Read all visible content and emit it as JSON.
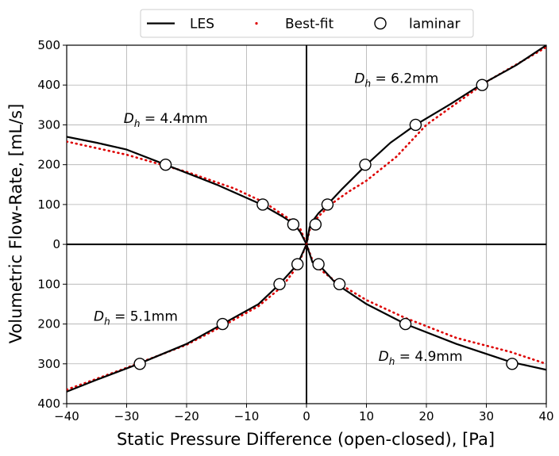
{
  "chart_data": {
    "type": "line",
    "title": "",
    "xlabel": "Static Pressure Difference (open-closed), [Pa]",
    "ylabel": "Volumetric Flow-Rate, [mL/s]",
    "xlim": [
      -40,
      40
    ],
    "ylim": [
      -400,
      500
    ],
    "x_ticks": [
      -40,
      -30,
      -20,
      -10,
      0,
      10,
      20,
      30,
      40
    ],
    "x_tick_labels": [
      "−40",
      "−30",
      "−20",
      "−10",
      "0",
      "10",
      "20",
      "30",
      "40"
    ],
    "y_ticks": [
      -400,
      -300,
      -200,
      -100,
      0,
      100,
      200,
      300,
      400,
      500
    ],
    "y_tick_labels": [
      "400",
      "300",
      "200",
      "100",
      "0",
      "100",
      "200",
      "300",
      "400",
      "500"
    ],
    "grid": true,
    "legend_position": "top-center",
    "legend": [
      {
        "label": "LES",
        "style": "line",
        "color": "#000000"
      },
      {
        "label": "Best-fit",
        "style": "dotted",
        "color": "#dd0000"
      },
      {
        "label": "laminar",
        "style": "open-circle",
        "color": "#000000"
      }
    ],
    "annotations": [
      {
        "base": "D",
        "sub": "h",
        "text": " = 6.2mm",
        "x": 8,
        "y": 405
      },
      {
        "base": "D",
        "sub": "h",
        "text": " = 4.4mm",
        "x": -30.5,
        "y": 305
      },
      {
        "base": "D",
        "sub": "h",
        "text": " = 5.1mm",
        "x": -35.5,
        "y": -192
      },
      {
        "base": "D",
        "sub": "h",
        "text": " = 4.9mm",
        "x": 12,
        "y": -292
      }
    ],
    "series": [
      {
        "name": "",
        "label_ref": "D_h = 6.2mm",
        "les": [
          [
            0,
            0
          ],
          [
            0.5,
            42
          ],
          [
            1,
            58
          ],
          [
            2,
            78
          ],
          [
            3.5,
            100
          ],
          [
            6,
            140
          ],
          [
            10,
            200
          ],
          [
            14,
            255
          ],
          [
            18.2,
            300
          ],
          [
            24,
            352
          ],
          [
            29,
            400
          ],
          [
            35,
            450
          ],
          [
            40,
            500
          ]
        ],
        "best_fit": [
          [
            0,
            0
          ],
          [
            0.5,
            35
          ],
          [
            1,
            50
          ],
          [
            2,
            70
          ],
          [
            4,
            100
          ],
          [
            7,
            132
          ],
          [
            10,
            160
          ],
          [
            15,
            220
          ],
          [
            20,
            300
          ],
          [
            30,
            408
          ],
          [
            40,
            495
          ]
        ],
        "laminar": [
          [
            1.5,
            50
          ],
          [
            3.5,
            100
          ],
          [
            9.8,
            200
          ],
          [
            18.2,
            300
          ],
          [
            29.3,
            400
          ]
        ]
      },
      {
        "name": "",
        "label_ref": "D_h = 4.4mm",
        "les": [
          [
            -40,
            270
          ],
          [
            -35,
            255
          ],
          [
            -30,
            238
          ],
          [
            -23.5,
            200
          ],
          [
            -15,
            150
          ],
          [
            -7.5,
            100
          ],
          [
            -4,
            70
          ],
          [
            -2,
            50
          ],
          [
            -1,
            30
          ],
          [
            0,
            0
          ]
        ],
        "best_fit": [
          [
            -40,
            258
          ],
          [
            -30,
            225
          ],
          [
            -20,
            182
          ],
          [
            -12,
            140
          ],
          [
            -7,
            105
          ],
          [
            -3,
            65
          ],
          [
            -1,
            38
          ],
          [
            0,
            0
          ]
        ],
        "laminar": [
          [
            -23.5,
            200
          ],
          [
            -7.3,
            100
          ],
          [
            -2.2,
            50
          ]
        ]
      },
      {
        "name": "",
        "label_ref": "D_h = 5.1mm",
        "les": [
          [
            -40,
            -370
          ],
          [
            -35,
            -340
          ],
          [
            -28,
            -300
          ],
          [
            -20,
            -250
          ],
          [
            -14,
            -200
          ],
          [
            -8,
            -150
          ],
          [
            -4.5,
            -100
          ],
          [
            -1.5,
            -50
          ],
          [
            0,
            0
          ]
        ],
        "best_fit": [
          [
            -40,
            -365
          ],
          [
            -30,
            -310
          ],
          [
            -20,
            -252
          ],
          [
            -14,
            -205
          ],
          [
            -8,
            -155
          ],
          [
            -4,
            -105
          ],
          [
            -1.5,
            -55
          ],
          [
            0,
            0
          ]
        ],
        "laminar": [
          [
            -27.8,
            -300
          ],
          [
            -14,
            -200
          ],
          [
            -4.5,
            -100
          ],
          [
            -1.5,
            -50
          ]
        ]
      },
      {
        "name": "",
        "label_ref": "D_h = 4.9mm",
        "les": [
          [
            0,
            0
          ],
          [
            1,
            -45
          ],
          [
            2,
            -50
          ],
          [
            5,
            -100
          ],
          [
            10,
            -150
          ],
          [
            16.5,
            -200
          ],
          [
            25,
            -250
          ],
          [
            34,
            -295
          ],
          [
            40,
            -315
          ]
        ],
        "best_fit": [
          [
            0,
            0
          ],
          [
            1,
            -40
          ],
          [
            2,
            -60
          ],
          [
            5,
            -95
          ],
          [
            10,
            -140
          ],
          [
            16.5,
            -185
          ],
          [
            25,
            -235
          ],
          [
            34,
            -270
          ],
          [
            40,
            -300
          ]
        ],
        "laminar": [
          [
            2,
            -50
          ],
          [
            5.5,
            -100
          ],
          [
            16.5,
            -200
          ],
          [
            34.3,
            -300
          ]
        ]
      }
    ]
  }
}
